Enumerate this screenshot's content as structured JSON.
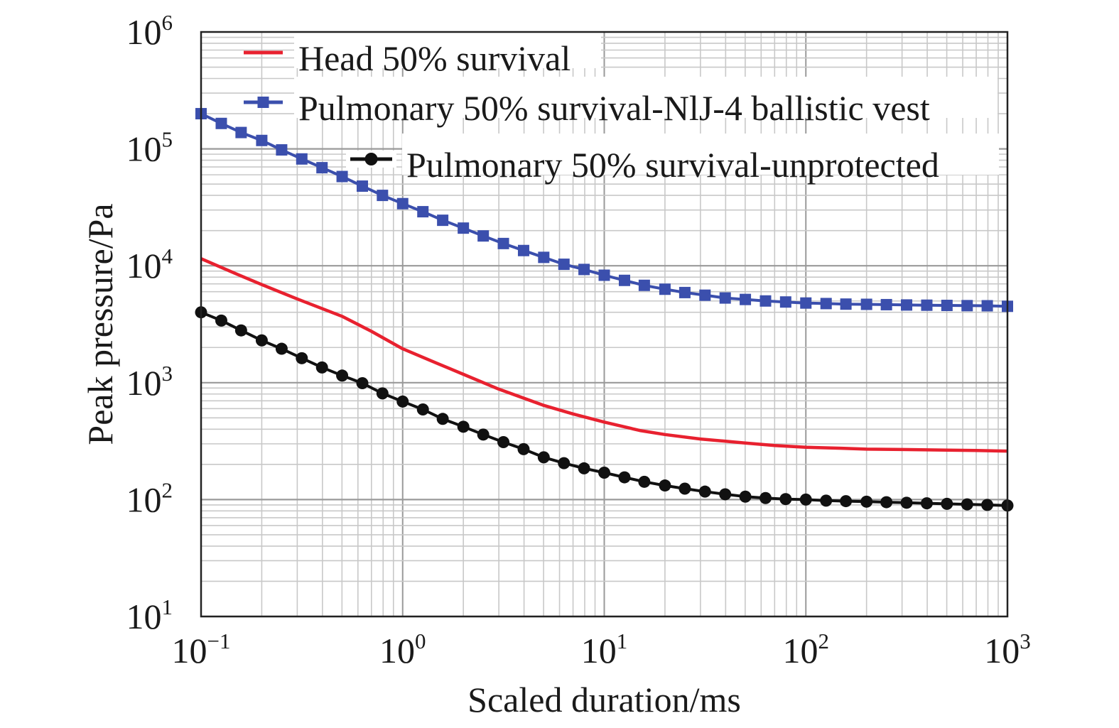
{
  "chart_data": {
    "type": "line",
    "title": "",
    "xlabel": "Scaled duration/ms",
    "ylabel": "Peak pressure/Pa",
    "x_scale": "log",
    "y_scale": "log",
    "xlim": [
      0.1,
      1000
    ],
    "ylim": [
      10,
      1000000
    ],
    "grid": true,
    "legend_position": "top",
    "x_ticks": [
      {
        "base": "10",
        "exp": "−1",
        "value": 0.1
      },
      {
        "base": "10",
        "exp": "0",
        "value": 1
      },
      {
        "base": "10",
        "exp": "1",
        "value": 10
      },
      {
        "base": "10",
        "exp": "2",
        "value": 100
      },
      {
        "base": "10",
        "exp": "3",
        "value": 1000
      }
    ],
    "y_ticks": [
      {
        "base": "10",
        "exp": "1",
        "value": 10
      },
      {
        "base": "10",
        "exp": "2",
        "value": 100
      },
      {
        "base": "10",
        "exp": "3",
        "value": 1000
      },
      {
        "base": "10",
        "exp": "4",
        "value": 10000
      },
      {
        "base": "10",
        "exp": "5",
        "value": 100000
      },
      {
        "base": "10",
        "exp": "6",
        "value": 1000000
      }
    ],
    "series": [
      {
        "name": "Head 50% survival",
        "color": "#e8212f",
        "marker": "none",
        "x": [
          0.1,
          0.15,
          0.2,
          0.3,
          0.5,
          0.7,
          1,
          1.5,
          2,
          3,
          5,
          7,
          10,
          15,
          20,
          30,
          50,
          70,
          100,
          150,
          200,
          300,
          500,
          700,
          1000
        ],
        "y": [
          11500,
          8500,
          6900,
          5200,
          3700,
          2750,
          1950,
          1450,
          1180,
          880,
          640,
          540,
          460,
          390,
          360,
          330,
          305,
          290,
          280,
          275,
          270,
          268,
          265,
          263,
          260
        ]
      },
      {
        "name": "Pulmonary 50% survival-NlJ-4 ballistic vest",
        "color": "#3b4fad",
        "marker": "square",
        "x": [
          0.1,
          0.126,
          0.158,
          0.2,
          0.251,
          0.316,
          0.398,
          0.501,
          0.631,
          0.794,
          1,
          1.26,
          1.58,
          2,
          2.51,
          3.16,
          3.98,
          5.01,
          6.31,
          7.94,
          10,
          12.6,
          15.8,
          20,
          25.1,
          31.6,
          39.8,
          50.1,
          63.1,
          79.4,
          100,
          126,
          158,
          200,
          251,
          316,
          398,
          501,
          631,
          794,
          1000
        ],
        "y": [
          200000,
          165000,
          138000,
          118000,
          98000,
          82000,
          69000,
          58000,
          48000,
          40000,
          34000,
          29000,
          24500,
          21000,
          18000,
          15500,
          13500,
          11800,
          10300,
          9300,
          8300,
          7500,
          6800,
          6300,
          5900,
          5600,
          5300,
          5150,
          5000,
          4900,
          4800,
          4750,
          4700,
          4680,
          4650,
          4620,
          4600,
          4580,
          4560,
          4550,
          4500
        ]
      },
      {
        "name": "Pulmonary 50% survival-unprotected",
        "color": "#111111",
        "marker": "circle",
        "x": [
          0.1,
          0.126,
          0.158,
          0.2,
          0.251,
          0.316,
          0.398,
          0.501,
          0.631,
          0.794,
          1,
          1.26,
          1.58,
          2,
          2.51,
          3.16,
          3.98,
          5.01,
          6.31,
          7.94,
          10,
          12.6,
          15.8,
          20,
          25.1,
          31.6,
          39.8,
          50.1,
          63.1,
          79.4,
          100,
          126,
          158,
          200,
          251,
          316,
          398,
          501,
          631,
          794,
          1000
        ],
        "y": [
          4000,
          3400,
          2800,
          2300,
          1950,
          1620,
          1350,
          1150,
          990,
          810,
          690,
          590,
          490,
          420,
          360,
          310,
          270,
          230,
          205,
          185,
          170,
          155,
          142,
          132,
          124,
          117,
          111,
          106,
          103,
          101,
          100,
          98,
          97,
          96,
          95,
          94,
          93,
          92,
          91,
          90,
          89
        ]
      }
    ]
  }
}
